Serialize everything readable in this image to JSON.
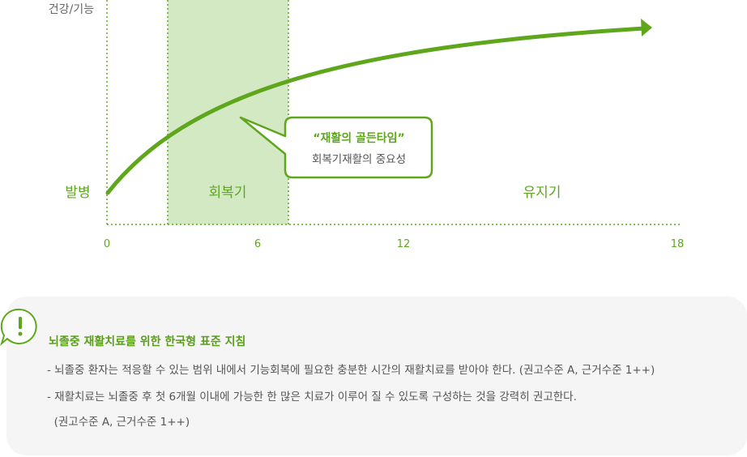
{
  "diagram": {
    "y_axis_label": "건강/기능",
    "phases": {
      "onset": "발병",
      "recovery": "회복기",
      "maintenance": "유지기"
    },
    "x_ticks": [
      "0",
      "6",
      "12",
      "18"
    ],
    "callout": {
      "title": "“재활의 골든타임”",
      "subtitle": "회복기재활의 중요성"
    },
    "colors": {
      "accent": "#5ea71c",
      "band": "#d2e9c3",
      "text": "#666666"
    }
  },
  "guideline": {
    "title": "뇌졸중 재활치료를 위한 한국형 표준 지침",
    "lines": [
      "- 뇌졸중 환자는 적응할 수 있는 범위 내에서 기능회복에 필요한 충분한 시간의 재활치료를 받아야 한다. (권고수준 A, 근거수준 1++)",
      "- 재활치료는 뇌졸중 후 첫 6개월 이내에 가능한 한 많은 치료가 이루어 질 수 있도록 구성하는 것을 강력히 권고한다.",
      "  (권고수준 A, 근거수준 1++)"
    ]
  }
}
